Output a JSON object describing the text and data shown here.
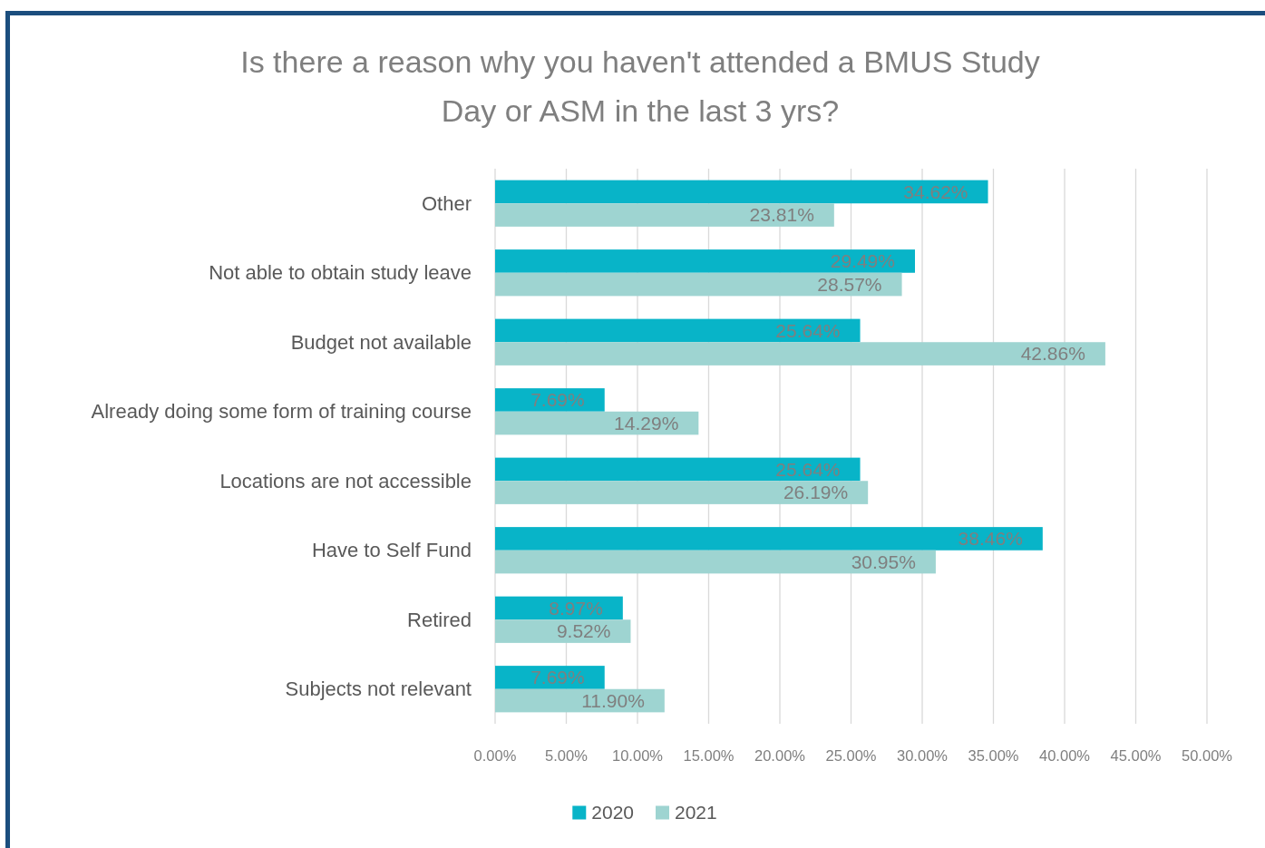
{
  "chart_data": {
    "type": "bar",
    "orientation": "horizontal",
    "title": "Is there a reason why you haven't attended a BMUS Study Day or ASM in the last 3 yrs?",
    "categories": [
      "Other",
      "Not able to obtain study leave",
      "Budget not available",
      "Already doing some form of training course",
      "Locations are not accessible",
      "Have to Self Fund",
      "Retired",
      "Subjects not relevant"
    ],
    "series": [
      {
        "name": "2020",
        "color": "#08b4c8",
        "values": [
          34.62,
          29.49,
          25.64,
          7.69,
          25.64,
          38.46,
          8.97,
          7.69
        ],
        "value_labels": [
          "34.62%",
          "29.49%",
          "25.64%",
          "7.69%",
          "25.64%",
          "38.46%",
          "8.97%",
          "7.69%"
        ]
      },
      {
        "name": "2021",
        "color": "#9ed4d1",
        "values": [
          23.81,
          28.57,
          42.86,
          14.29,
          26.19,
          30.95,
          9.52,
          11.9
        ],
        "value_labels": [
          "23.81%",
          "28.57%",
          "42.86%",
          "14.29%",
          "26.19%",
          "30.95%",
          "9.52%",
          "11.90%"
        ]
      }
    ],
    "xlim": [
      0,
      50
    ],
    "xticks": [
      {
        "value": 0,
        "label": "0.00%"
      },
      {
        "value": 5,
        "label": "5.00%"
      },
      {
        "value": 10,
        "label": "10.00%"
      },
      {
        "value": 15,
        "label": "15.00%"
      },
      {
        "value": 20,
        "label": "20.00%"
      },
      {
        "value": 25,
        "label": "25.00%"
      },
      {
        "value": 30,
        "label": "30.00%"
      },
      {
        "value": 35,
        "label": "35.00%"
      },
      {
        "value": 40,
        "label": "40.00%"
      },
      {
        "value": 45,
        "label": "45.00%"
      },
      {
        "value": 50,
        "label": "50.00%"
      }
    ],
    "grid": "x",
    "legend": "bottom"
  }
}
